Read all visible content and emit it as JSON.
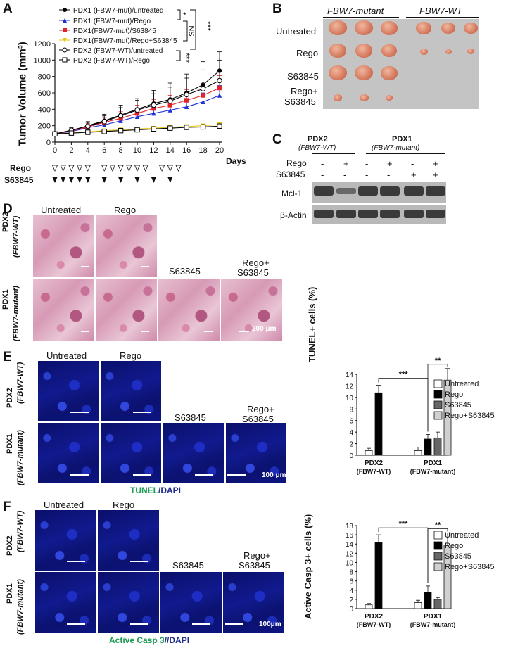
{
  "panels": {
    "A": "A",
    "B": "B",
    "C": "C",
    "D": "D",
    "E": "E",
    "F": "F"
  },
  "chart_data": [
    {
      "type": "line",
      "ylabel": "Tumor Volume (mm³)",
      "xlabel": "Days",
      "x": [
        0,
        2,
        4,
        6,
        8,
        10,
        12,
        14,
        16,
        18,
        20
      ],
      "ylim": [
        0,
        1200
      ],
      "xlim": [
        0,
        20
      ],
      "yticks": [
        "0",
        "200",
        "400",
        "600",
        "800",
        "1000",
        "1200"
      ],
      "xticks": [
        "0",
        "2",
        "4",
        "6",
        "8",
        "10",
        "12",
        "14",
        "16",
        "18",
        "20"
      ],
      "series": [
        {
          "name": "PDX1 (FBW7-mut)/untreated",
          "marker": "filled-circle",
          "color": "#000000",
          "values": [
            100,
            140,
            200,
            260,
            330,
            400,
            470,
            520,
            600,
            700,
            870
          ],
          "err": [
            20,
            30,
            50,
            80,
            120,
            130,
            160,
            200,
            230,
            280,
            230
          ]
        },
        {
          "name": "PDX1 (FBW7-mut)/Rego",
          "marker": "triangle",
          "color": "#1f2fd6",
          "values": [
            100,
            130,
            175,
            210,
            260,
            310,
            350,
            390,
            430,
            490,
            570
          ],
          "err": [
            15,
            20,
            30,
            40,
            60,
            70,
            80,
            90,
            100,
            110,
            120
          ]
        },
        {
          "name": "PDX1(FBW7-mut)/S63845",
          "marker": "square",
          "color": "#e0222a",
          "values": [
            100,
            135,
            185,
            240,
            290,
            350,
            410,
            450,
            510,
            570,
            660
          ],
          "err": [
            15,
            25,
            40,
            60,
            80,
            100,
            110,
            120,
            130,
            140,
            150
          ]
        },
        {
          "name": "PDX1(FBW7-mut)/Rego+S63845",
          "marker": "down-triangle",
          "color": "#e6c619",
          "values": [
            100,
            110,
            125,
            140,
            150,
            160,
            170,
            180,
            190,
            200,
            215
          ],
          "err": [
            10,
            10,
            12,
            12,
            14,
            14,
            15,
            15,
            16,
            16,
            18
          ]
        },
        {
          "name": "PDX2 (FBW7-WT)/untreated",
          "marker": "open-circle",
          "color": "#000000",
          "values": [
            100,
            145,
            195,
            250,
            320,
            390,
            450,
            500,
            580,
            650,
            750
          ],
          "err": [
            20,
            30,
            45,
            70,
            100,
            120,
            140,
            170,
            200,
            230,
            250
          ]
        },
        {
          "name": "PDX2 (FBW7-WT)/Rego",
          "marker": "open-square",
          "color": "#000000",
          "values": [
            100,
            110,
            120,
            130,
            140,
            150,
            160,
            170,
            180,
            185,
            195
          ],
          "err": [
            10,
            10,
            10,
            12,
            12,
            12,
            14,
            14,
            14,
            15,
            15
          ]
        }
      ],
      "significance": [
        "*",
        "NS",
        "***",
        "***"
      ],
      "dosing": {
        "rego_label": "Rego",
        "s63845_label": "S63845",
        "rego_days": [
          0,
          1,
          2,
          3,
          4,
          6,
          7,
          8,
          9,
          10,
          11,
          13,
          14,
          15
        ],
        "s63845_days": [
          0,
          1,
          2,
          3,
          4,
          6,
          8,
          10,
          12,
          14
        ]
      }
    },
    {
      "type": "bar",
      "title": "",
      "ylabel": "TUNEL+ cells (%)",
      "ylim": [
        0,
        14
      ],
      "yticks": [
        "0",
        "2",
        "4",
        "6",
        "8",
        "10",
        "12",
        "14"
      ],
      "groups": [
        {
          "label": "PDX2",
          "sublabel": "(FBW7-WT)"
        },
        {
          "label": "PDX1",
          "sublabel": "(FBW7-mutant)"
        }
      ],
      "series": [
        {
          "name": "Untreated",
          "color": "#ffffff",
          "values": [
            0.8,
            0.8
          ],
          "err": [
            0.4,
            0.6
          ]
        },
        {
          "name": "Rego",
          "color": "#000000",
          "values": [
            10.8,
            2.8
          ],
          "err": [
            1.3,
            0.8
          ]
        },
        {
          "name": "S63845",
          "color": "#666666",
          "values": [
            null,
            3.0
          ],
          "err": [
            null,
            1.0
          ]
        },
        {
          "name": "Rego+S63845",
          "color": "#d0d0d0",
          "values": [
            null,
            13.0
          ],
          "err": [
            null,
            2.0
          ]
        }
      ],
      "significance": [
        "***",
        "**"
      ]
    },
    {
      "type": "bar",
      "title": "",
      "ylabel": "Active Casp 3+ cells (%)",
      "ylim": [
        0,
        18
      ],
      "yticks": [
        "0",
        "2",
        "4",
        "6",
        "8",
        "10",
        "12",
        "14",
        "16",
        "18"
      ],
      "groups": [
        {
          "label": "PDX2",
          "sublabel": "(FBW7-WT)"
        },
        {
          "label": "PDX1",
          "sublabel": "(FBW7-mutant)"
        }
      ],
      "series": [
        {
          "name": "Untreated",
          "color": "#ffffff",
          "values": [
            0.8,
            1.3
          ],
          "err": [
            0.3,
            0.5
          ]
        },
        {
          "name": "Rego",
          "color": "#000000",
          "values": [
            14.3,
            3.6
          ],
          "err": [
            1.7,
            1.3
          ]
        },
        {
          "name": "S63845",
          "color": "#666666",
          "values": [
            null,
            2.0
          ],
          "err": [
            null,
            0.4
          ]
        },
        {
          "name": "Rego+S63845",
          "color": "#d0d0d0",
          "values": [
            null,
            13.8
          ],
          "err": [
            null,
            2.6
          ]
        }
      ],
      "significance": [
        "***",
        "**"
      ]
    }
  ],
  "panelB": {
    "col_headers": [
      "FBW7-mutant",
      "FBW7-WT"
    ],
    "row_labels": [
      "Untreated",
      "Rego",
      "S63845",
      "Rego+",
      "S63845"
    ]
  },
  "panelC": {
    "group1": "PDX2",
    "group1_sub": "(FBW7-WT)",
    "group2": "PDX1",
    "group2_sub": "(FBW7-mutant)",
    "rego_label": "Rego",
    "s63845_label": "S63845",
    "rego_signs": [
      "-",
      "+",
      "-",
      "+",
      "-",
      "+"
    ],
    "s63845_signs": [
      "-",
      "-",
      "-",
      "-",
      "+",
      "+"
    ],
    "band1": "Mcl-1",
    "band2": "β-Actin"
  },
  "panelD": {
    "row1": "PDX2",
    "row1_sub": "(FBW7-WT)",
    "row2": "PDX1",
    "row2_sub": "(FBW7-mutant)",
    "col_untreated": "Untreated",
    "col_rego": "Rego",
    "col_s63845": "S63845",
    "col_combo1": "Rego+",
    "col_combo2": "S63845",
    "scale": "200 μm"
  },
  "panelE": {
    "row1": "PDX2",
    "row1_sub": "(FBW7-WT)",
    "row2": "PDX1",
    "row2_sub": "(FBW7-mutant)",
    "col_untreated": "Untreated",
    "col_rego": "Rego",
    "col_s63845": "S63845",
    "col_combo1": "Rego+",
    "col_combo2": "S63845",
    "scale": "100 μm",
    "stain1": "TUNEL",
    "stain_sep": "/",
    "stain2": "DAPI"
  },
  "panelF": {
    "row1": "PDX2",
    "row1_sub": "(FBW7-WT)",
    "row2": "PDX1",
    "row2_sub": "(FBW7-mutant)",
    "col_untreated": "Untreated",
    "col_rego": "Rego",
    "col_s63845": "S63845",
    "col_combo1": "Rego+",
    "col_combo2": "S63845",
    "scale": "100μm",
    "stain1": "Active Casp 3",
    "stain_sep": "//",
    "stain2": "DAPI"
  }
}
